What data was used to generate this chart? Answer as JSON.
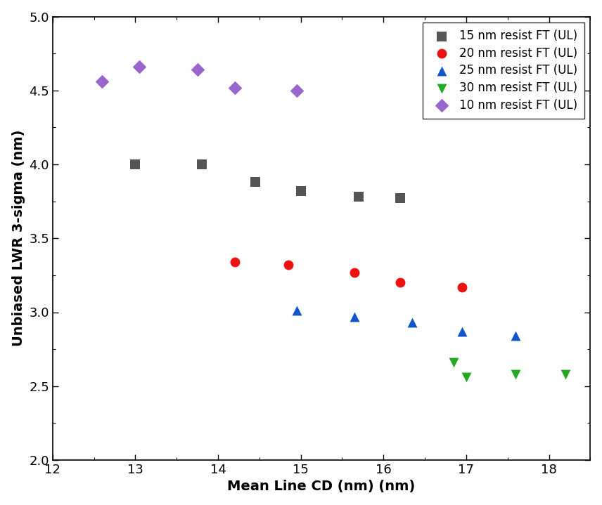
{
  "series": [
    {
      "label": "15 nm resist FT (UL)",
      "color": "#555555",
      "marker": "s",
      "markersize": 10,
      "x": [
        13.0,
        13.8,
        14.45,
        15.0,
        15.7,
        16.2
      ],
      "y": [
        4.0,
        4.0,
        3.88,
        3.82,
        3.78,
        3.77
      ]
    },
    {
      "label": "20 nm resist FT (UL)",
      "color": "#ee1111",
      "marker": "o",
      "markersize": 10,
      "x": [
        14.2,
        14.85,
        15.65,
        16.2,
        16.95
      ],
      "y": [
        3.34,
        3.32,
        3.27,
        3.2,
        3.17
      ]
    },
    {
      "label": "25 nm resist FT (UL)",
      "color": "#1155cc",
      "marker": "^",
      "markersize": 10,
      "x": [
        14.95,
        15.65,
        16.35,
        16.95,
        17.6
      ],
      "y": [
        3.01,
        2.97,
        2.93,
        2.87,
        2.84
      ]
    },
    {
      "label": "30 nm resist FT (UL)",
      "color": "#22aa22",
      "marker": "v",
      "markersize": 10,
      "x": [
        16.85,
        17.0,
        17.6,
        18.2
      ],
      "y": [
        2.66,
        2.56,
        2.58,
        2.58
      ]
    },
    {
      "label": "10 nm resist FT (UL)",
      "color": "#9966cc",
      "marker": "D",
      "markersize": 10,
      "x": [
        12.6,
        13.05,
        13.75,
        14.2,
        14.95
      ],
      "y": [
        4.56,
        4.66,
        4.64,
        4.52,
        4.5
      ]
    }
  ],
  "xlabel": "Mean Line CD (nm) (nm)",
  "ylabel": "Unbiased LWR 3-sigma (nm)",
  "xlim": [
    12,
    18.5
  ],
  "ylim": [
    2.0,
    5.0
  ],
  "xticks": [
    12,
    13,
    14,
    15,
    16,
    17,
    18
  ],
  "yticks": [
    2.0,
    2.5,
    3.0,
    3.5,
    4.0,
    4.5,
    5.0
  ],
  "xlabel_fontsize": 14,
  "ylabel_fontsize": 14,
  "tick_fontsize": 13,
  "legend_fontsize": 12
}
